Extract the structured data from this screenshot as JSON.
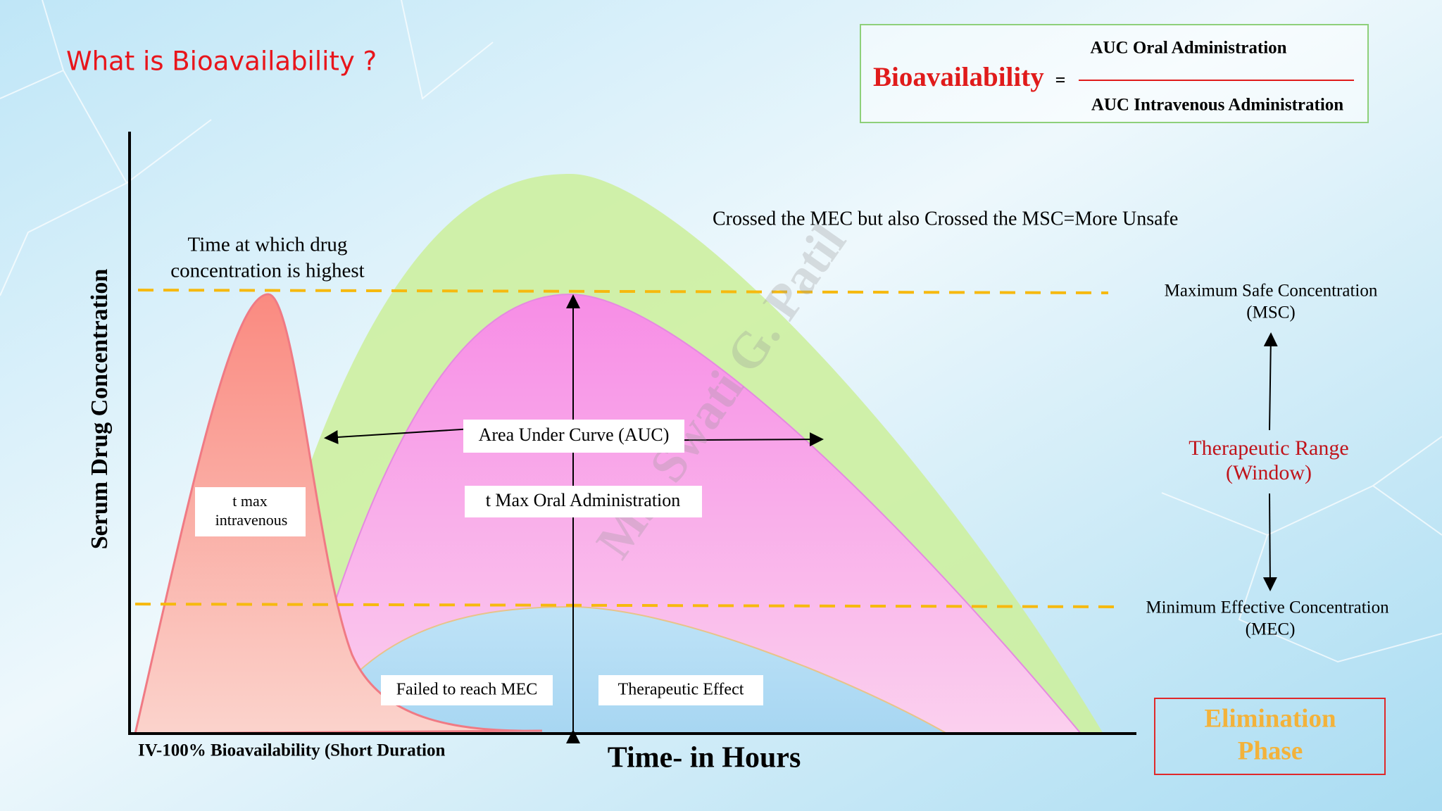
{
  "header": {
    "title": "What is Bioavailability ?"
  },
  "formula": {
    "lhs": "Bioavailability",
    "equals": "=",
    "numerator": "AUC Oral Administration",
    "denominator": "AUC Intravenous Administration"
  },
  "axes": {
    "y_label": "Serum Drug Concentration",
    "x_label": "Time- in Hours",
    "x_note": "IV-100% Bioavailability (Short Duration"
  },
  "annotations": {
    "peak_note": [
      "Time at which drug",
      "concentration is highest"
    ],
    "unsafe_note": "Crossed the MEC but also Crossed the MSC=More Unsafe"
  },
  "labels": {
    "auc": "Area Under Curve (AUC)",
    "tmax_oral": "t Max Oral Administration",
    "tmax_iv": [
      "t max",
      "intravenous"
    ],
    "failed": "Failed to reach MEC",
    "therapeutic_effect": "Therapeutic Effect"
  },
  "right_panel": {
    "msc": [
      "Maximum Safe Concentration",
      "(MSC)"
    ],
    "range": [
      "Therapeutic Range",
      "(Window)"
    ],
    "mec": [
      "Minimum Effective Concentration",
      "(MEC)"
    ],
    "elimination": [
      "Elimination",
      "Phase"
    ]
  },
  "watermark": "Ms. Swati G. Patil"
}
